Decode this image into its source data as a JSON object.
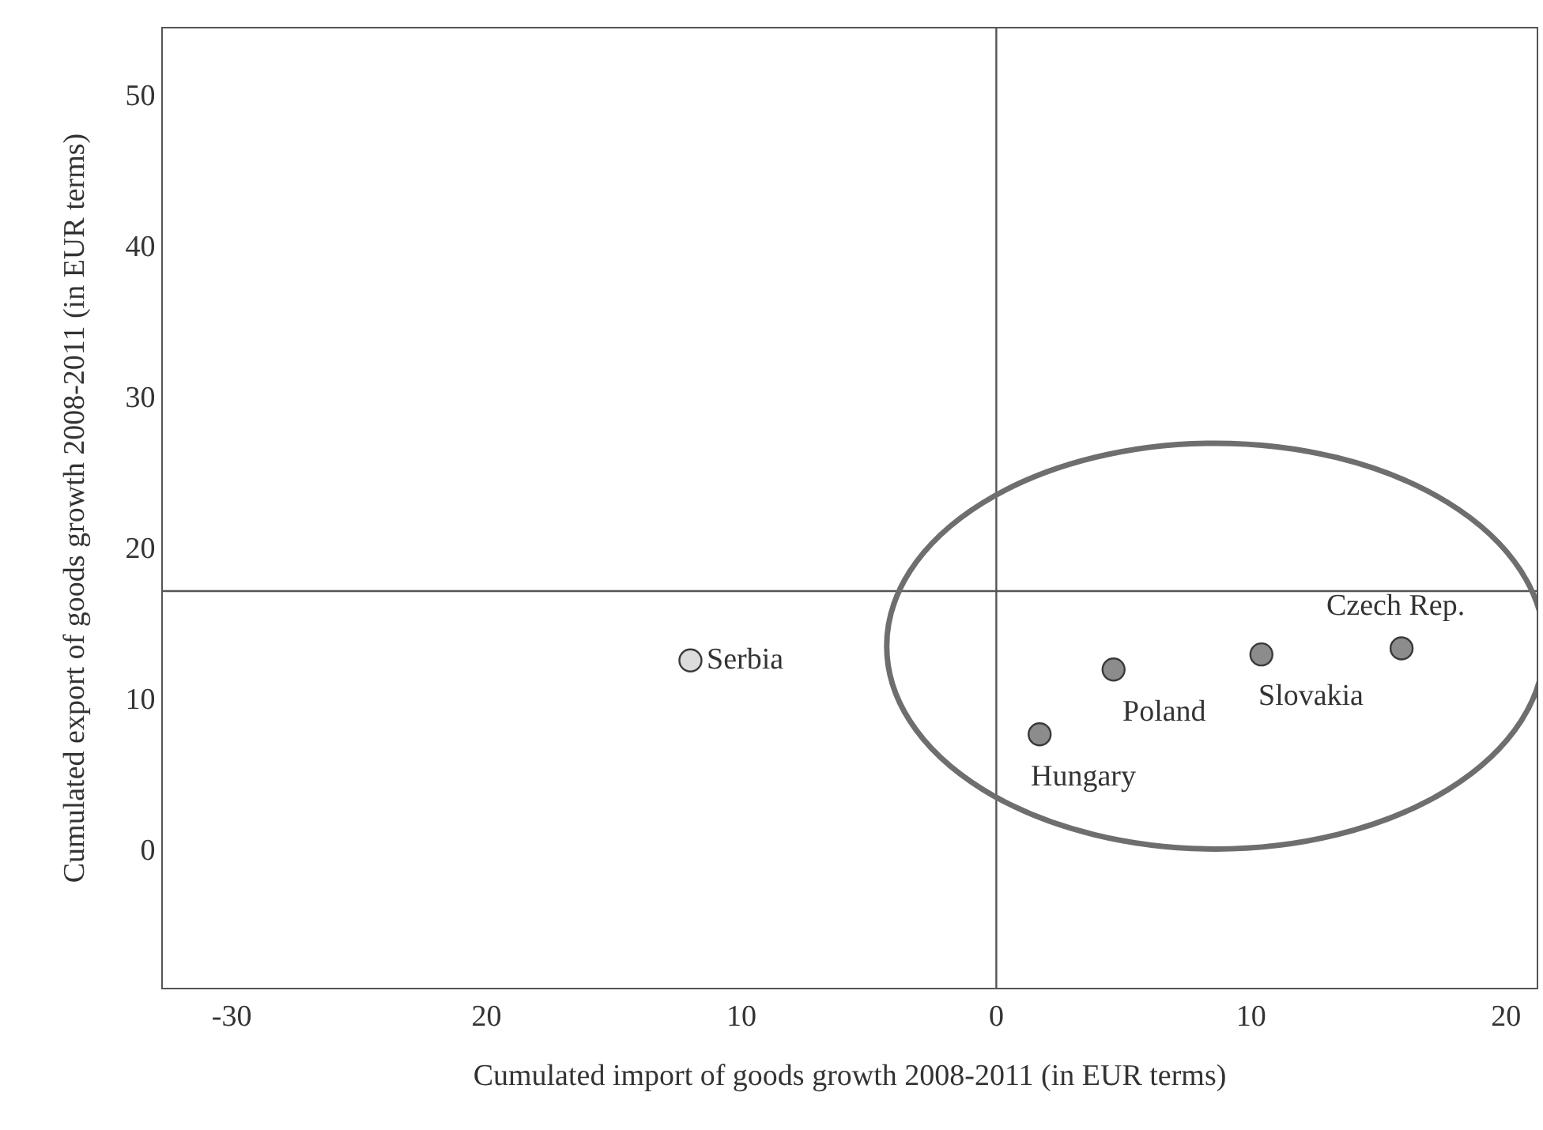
{
  "chart_data": {
    "type": "scatter",
    "xlabel": "Cumulated import of goods growth 2008-2011 (in EUR terms)",
    "ylabel": "Cumulated export of goods growth 2008-2011 (in EUR terms)",
    "x": [
      -12.0,
      1.7,
      4.6,
      10.4,
      15.9
    ],
    "values": [
      12.5,
      7.6,
      11.9,
      12.9,
      13.3
    ],
    "colors": [
      "#dcdcdc",
      "#8c8c8c",
      "#8c8c8c",
      "#8c8c8c",
      "#8c8c8c"
    ],
    "marker": "circle",
    "annotations": [
      {
        "text": "Serbia",
        "x": -12.0,
        "y": 12.5
      },
      {
        "text": "Hungary",
        "x": 1.7,
        "y": 7.6
      },
      {
        "text": "Poland",
        "x": 4.6,
        "y": 11.9
      },
      {
        "text": "Slovakia",
        "x": 10.4,
        "y": 12.9
      },
      {
        "text": "Czech Rep.",
        "x": 15.9,
        "y": 13.3
      }
    ],
    "ref_lines": [
      {
        "axis": "x",
        "value": 0,
        "color": "#555555"
      },
      {
        "axis": "y",
        "value": 17.1,
        "color": "#555555"
      }
    ],
    "xlim": [
      -32.7,
      21.2
    ],
    "xticks": [
      -30,
      {
        "value": -20,
        "label": "20"
      },
      {
        "value": -10,
        "label": "10"
      },
      0,
      10,
      20
    ],
    "ylim": [
      -9.2,
      54.4
    ],
    "yticks": [
      0,
      10,
      20,
      30,
      40,
      50
    ]
  }
}
